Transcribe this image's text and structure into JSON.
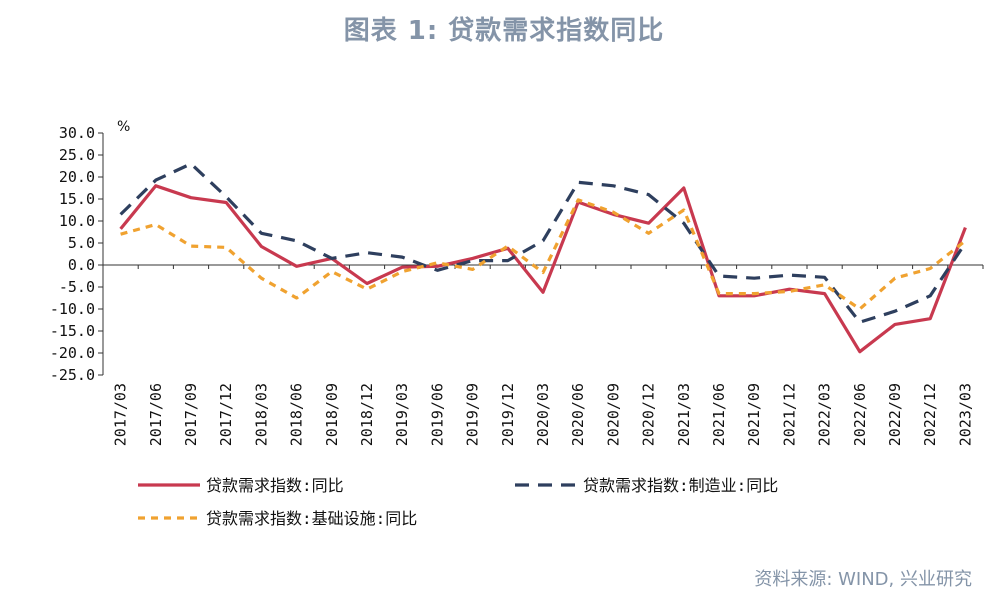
{
  "title": "图表 1:  贷款需求指数同比",
  "source": "资料来源: WIND, 兴业研究",
  "chart_data": {
    "type": "line",
    "unit": "%",
    "ylim": [
      -25,
      30
    ],
    "yticks": [
      "30.0",
      "25.0",
      "20.0",
      "15.0",
      "10.0",
      "5.0",
      "0.0",
      "-5.0",
      "-10.0",
      "-15.0",
      "-20.0",
      "-25.0"
    ],
    "categories": [
      "2017/03",
      "2017/06",
      "2017/09",
      "2017/12",
      "2018/03",
      "2018/06",
      "2018/09",
      "2018/12",
      "2019/03",
      "2019/06",
      "2019/09",
      "2019/12",
      "2020/03",
      "2020/06",
      "2020/09",
      "2020/12",
      "2021/03",
      "2021/06",
      "2021/09",
      "2021/12",
      "2022/03",
      "2022/06",
      "2022/09",
      "2022/12",
      "2023/03"
    ],
    "legend_position": "bottom",
    "grid": false,
    "series": [
      {
        "name": "贷款需求指数:同比",
        "color": "#c8394f",
        "dash": "solid",
        "values": [
          8.2,
          18.0,
          15.3,
          14.2,
          4.2,
          -0.3,
          1.5,
          -4.2,
          -0.5,
          -0.3,
          1.5,
          3.8,
          -6.2,
          14.3,
          11.5,
          9.5,
          17.5,
          -7.0,
          -7.0,
          -5.5,
          -6.5,
          -19.7,
          -13.5,
          -12.2,
          8.5
        ]
      },
      {
        "name": "贷款需求指数:制造业:同比",
        "color": "#2e3f5e",
        "dash": "long",
        "values": [
          11.5,
          19.3,
          23.0,
          15.5,
          7.2,
          5.5,
          1.5,
          2.8,
          1.8,
          -1.2,
          1.0,
          1.0,
          5.5,
          18.8,
          18.0,
          16.0,
          9.5,
          -2.5,
          -3.0,
          -2.3,
          -2.8,
          -13.0,
          -10.5,
          -7.0,
          5.0
        ]
      },
      {
        "name": "贷款需求指数:基础设施:同比",
        "color": "#f0a230",
        "dash": "short",
        "values": [
          7.0,
          9.2,
          4.3,
          4.0,
          -3.0,
          -7.5,
          -1.5,
          -5.5,
          -1.5,
          0.5,
          -1.0,
          4.3,
          -1.7,
          14.8,
          12.0,
          7.2,
          12.5,
          -6.5,
          -6.5,
          -6.0,
          -4.5,
          -10.0,
          -3.0,
          -0.8,
          5.5
        ]
      }
    ]
  }
}
